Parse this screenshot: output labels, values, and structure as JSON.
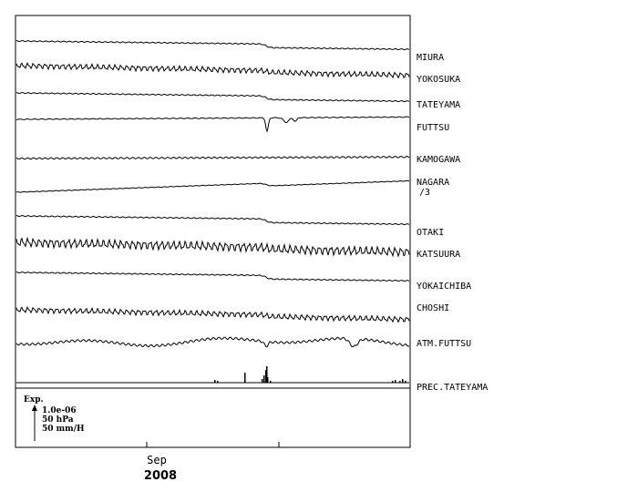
{
  "chart_data": {
    "type": "line",
    "title": "",
    "x_axis": {
      "tick_labels": [
        "Sep"
      ],
      "year_label": "2008"
    },
    "series": [
      {
        "name": "MIURA",
        "shape": "drift_step",
        "sub_label": ""
      },
      {
        "name": "YOKOSUKA",
        "shape": "tidal_wavy",
        "sub_label": ""
      },
      {
        "name": "TATEYAMA",
        "shape": "drift_step",
        "sub_label": ""
      },
      {
        "name": "FUTTSU",
        "shape": "spike",
        "sub_label": ""
      },
      {
        "name": "KAMOGAWA",
        "shape": "flat_wavy",
        "sub_label": ""
      },
      {
        "name": "NAGARA",
        "shape": "rising",
        "sub_label": "/3"
      },
      {
        "name": "OTAKI",
        "shape": "drift_step",
        "sub_label": ""
      },
      {
        "name": "KATSUURA",
        "shape": "tidal_wavy",
        "sub_label": ""
      },
      {
        "name": "YOKAICHIBA",
        "shape": "drift_step",
        "sub_label": ""
      },
      {
        "name": "CHOSHI",
        "shape": "tidal_wavy",
        "sub_label": ""
      },
      {
        "name": "ATM.FUTTSU",
        "shape": "pressure",
        "sub_label": ""
      },
      {
        "name": "PREC.TATEYAMA",
        "shape": "bars",
        "sub_label": ""
      }
    ],
    "scale_legend": {
      "title": "Exp.",
      "lines": [
        "1.0e-06",
        "50 hPa",
        "50 mm/H"
      ]
    },
    "grid": false,
    "legend": "right"
  }
}
